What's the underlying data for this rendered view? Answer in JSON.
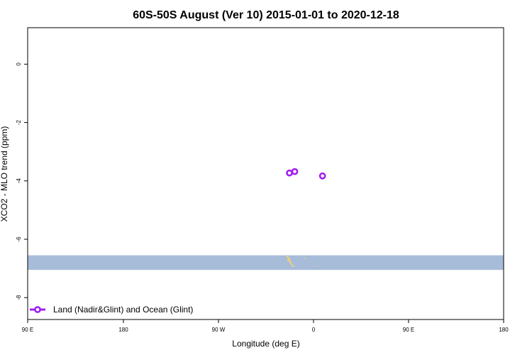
{
  "chart_data": {
    "type": "scatter",
    "title": "60S-50S August (Ver 10)   2015-01-01 to 2020-12-18",
    "xlabel": "Longitude (deg E)",
    "ylabel": "XCO2 - MLO trend (ppm)",
    "xlim": [
      90,
      450
    ],
    "ylim": [
      -8.75,
      1.25
    ],
    "x_ticks": [
      {
        "value": 90,
        "label": "90 E"
      },
      {
        "value": 180,
        "label": "180"
      },
      {
        "value": 270,
        "label": "90 W"
      },
      {
        "value": 360,
        "label": "0"
      },
      {
        "value": 450,
        "label": "90 E"
      },
      {
        "value": 540,
        "label": "180"
      }
    ],
    "y_ticks": [
      {
        "value": 0,
        "label": "0"
      },
      {
        "value": -2,
        "label": "-2"
      },
      {
        "value": -4,
        "label": "-4"
      },
      {
        "value": -6,
        "label": "-6"
      },
      {
        "value": -8,
        "label": "-8"
      }
    ],
    "series": [
      {
        "name": "Land (Nadir&Glint) and Ocean (Glint)",
        "color": "#a020f0",
        "marker": "open-circle",
        "points": [
          {
            "x": 288,
            "y": -3.73
          },
          {
            "x": 292,
            "y": -3.68
          },
          {
            "x": 313,
            "y": -3.83
          }
        ]
      }
    ],
    "background_band": {
      "ymin": -7.05,
      "ymax": -6.55,
      "color": "#a7bcd9"
    },
    "land_color": "#f2d27a",
    "legend_position": "bottom-left"
  }
}
